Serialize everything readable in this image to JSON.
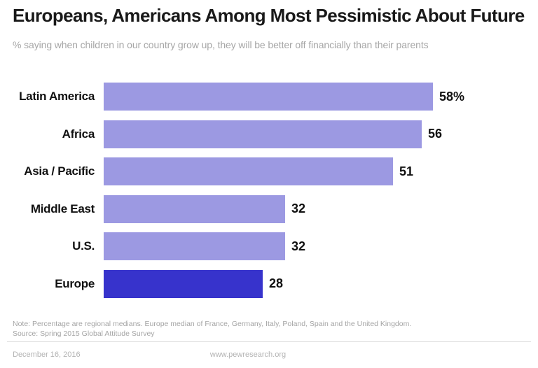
{
  "header": {
    "title": "Europeans, Americans Among Most Pessimistic About Future",
    "subtitle": "% saying when children in our country grow up, they will be better off financially than their parents"
  },
  "chart_data": {
    "type": "bar",
    "orientation": "horizontal",
    "categories": [
      "Latin America",
      "Africa",
      "Asia / Pacific",
      "Middle East",
      "U.S.",
      "Europe"
    ],
    "values": [
      58,
      56,
      51,
      32,
      32,
      28
    ],
    "value_labels": [
      "58%",
      "56",
      "51",
      "32",
      "32",
      "28"
    ],
    "highlight_index": 5,
    "bar_color": "#9c99e2",
    "highlight_color": "#3733cc",
    "xlim": [
      0,
      58
    ],
    "grid": false,
    "legend": false
  },
  "footer": {
    "note": "Note: Percentage are regional medians. Europe median of France, Germany, Italy, Poland, Spain and the United Kingdom.",
    "source": "Source: Spring 2015 Global Attitude Survey",
    "date": "December 16, 2016",
    "site": "www.pewresearch.org"
  }
}
